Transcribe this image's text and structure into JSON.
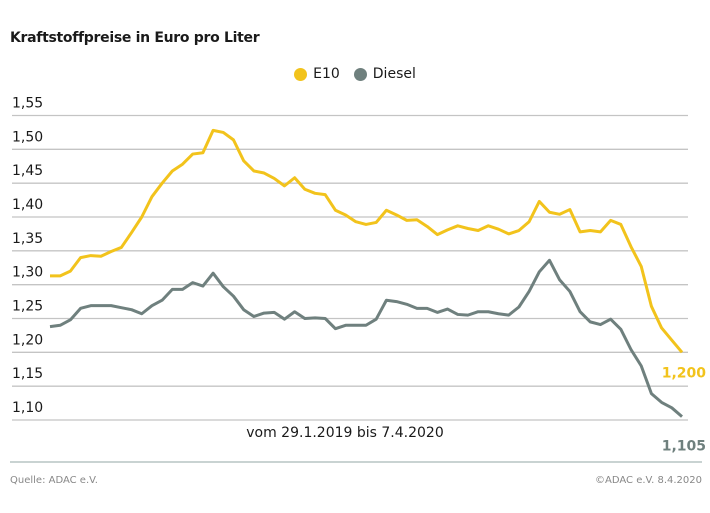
{
  "chart_data": {
    "type": "line",
    "title": "Kraftstoffpreise in Euro pro Liter",
    "subtitle": "vom 29.1.2019 bis 7.4.2020",
    "ylim": [
      1.1,
      1.55
    ],
    "yticks": [
      "1,10",
      "1,15",
      "1,20",
      "1,25",
      "1,30",
      "1,35",
      "1,40",
      "1,45",
      "1,50",
      "1,55"
    ],
    "ytick_values": [
      1.1,
      1.15,
      1.2,
      1.25,
      1.3,
      1.35,
      1.4,
      1.45,
      1.5,
      1.55
    ],
    "grid": true,
    "legend_position": "top-center",
    "series": [
      {
        "name": "E10",
        "color": "#f2c31c",
        "end_label": "1,200",
        "values": [
          1.313,
          1.313,
          1.32,
          1.34,
          1.343,
          1.342,
          1.349,
          1.355,
          1.377,
          1.4,
          1.43,
          1.45,
          1.468,
          1.478,
          1.493,
          1.495,
          1.528,
          1.525,
          1.514,
          1.483,
          1.468,
          1.465,
          1.457,
          1.446,
          1.458,
          1.441,
          1.435,
          1.433,
          1.41,
          1.403,
          1.393,
          1.389,
          1.392,
          1.41,
          1.403,
          1.395,
          1.396,
          1.386,
          1.374,
          1.381,
          1.387,
          1.383,
          1.38,
          1.387,
          1.382,
          1.375,
          1.38,
          1.393,
          1.423,
          1.407,
          1.404,
          1.411,
          1.378,
          1.38,
          1.378,
          1.395,
          1.389,
          1.356,
          1.327,
          1.268,
          1.236,
          1.218,
          1.2
        ]
      },
      {
        "name": "Diesel",
        "color": "#6f807e",
        "end_label": "1,105",
        "values": [
          1.238,
          1.24,
          1.248,
          1.265,
          1.269,
          1.269,
          1.269,
          1.266,
          1.263,
          1.257,
          1.269,
          1.277,
          1.293,
          1.293,
          1.303,
          1.298,
          1.317,
          1.297,
          1.283,
          1.263,
          1.253,
          1.258,
          1.259,
          1.249,
          1.26,
          1.25,
          1.251,
          1.25,
          1.235,
          1.24,
          1.24,
          1.24,
          1.249,
          1.277,
          1.275,
          1.271,
          1.265,
          1.265,
          1.259,
          1.264,
          1.256,
          1.255,
          1.26,
          1.26,
          1.257,
          1.255,
          1.267,
          1.29,
          1.319,
          1.336,
          1.307,
          1.29,
          1.26,
          1.245,
          1.241,
          1.249,
          1.234,
          1.204,
          1.18,
          1.139,
          1.126,
          1.118,
          1.105
        ]
      }
    ]
  },
  "footer": {
    "source": "Quelle: ADAC e.V.",
    "copyright": "©ADAC e.V. 8.4.2020"
  }
}
